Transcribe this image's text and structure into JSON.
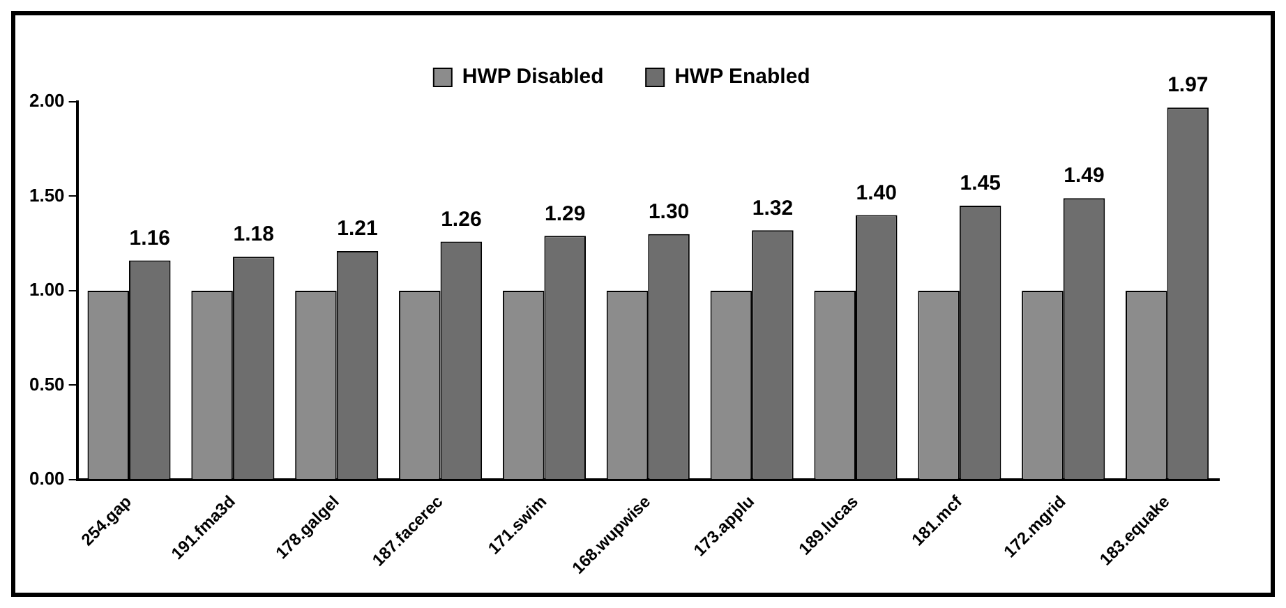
{
  "chart_data": {
    "type": "bar",
    "categories": [
      "254.gap",
      "191.fma3d",
      "178.galgel",
      "187.facerec",
      "171.swim",
      "168.wupwise",
      "173.applu",
      "189.lucas",
      "181.mcf",
      "172.mgrid",
      "183.equake"
    ],
    "series": [
      {
        "name": "HWP Disabled",
        "color": "#8c8c8c",
        "values": [
          1.0,
          1.0,
          1.0,
          1.0,
          1.0,
          1.0,
          1.0,
          1.0,
          1.0,
          1.0,
          1.0
        ]
      },
      {
        "name": "HWP Enabled",
        "color": "#6e6e6e",
        "values": [
          1.16,
          1.18,
          1.21,
          1.26,
          1.29,
          1.3,
          1.32,
          1.4,
          1.45,
          1.49,
          1.97
        ],
        "value_labels": [
          "1.16",
          "1.18",
          "1.21",
          "1.26",
          "1.29",
          "1.30",
          "1.32",
          "1.40",
          "1.45",
          "1.49",
          "1.97"
        ]
      }
    ],
    "ylim": [
      0,
      2
    ],
    "yticks": [
      {
        "value": 0,
        "label": "0.00"
      },
      {
        "value": 0.5,
        "label": "0.50"
      },
      {
        "value": 1,
        "label": "1.00"
      },
      {
        "value": 1.5,
        "label": "1.50"
      },
      {
        "value": 2,
        "label": "2.00"
      }
    ],
    "grid": false,
    "legend": "top"
  }
}
